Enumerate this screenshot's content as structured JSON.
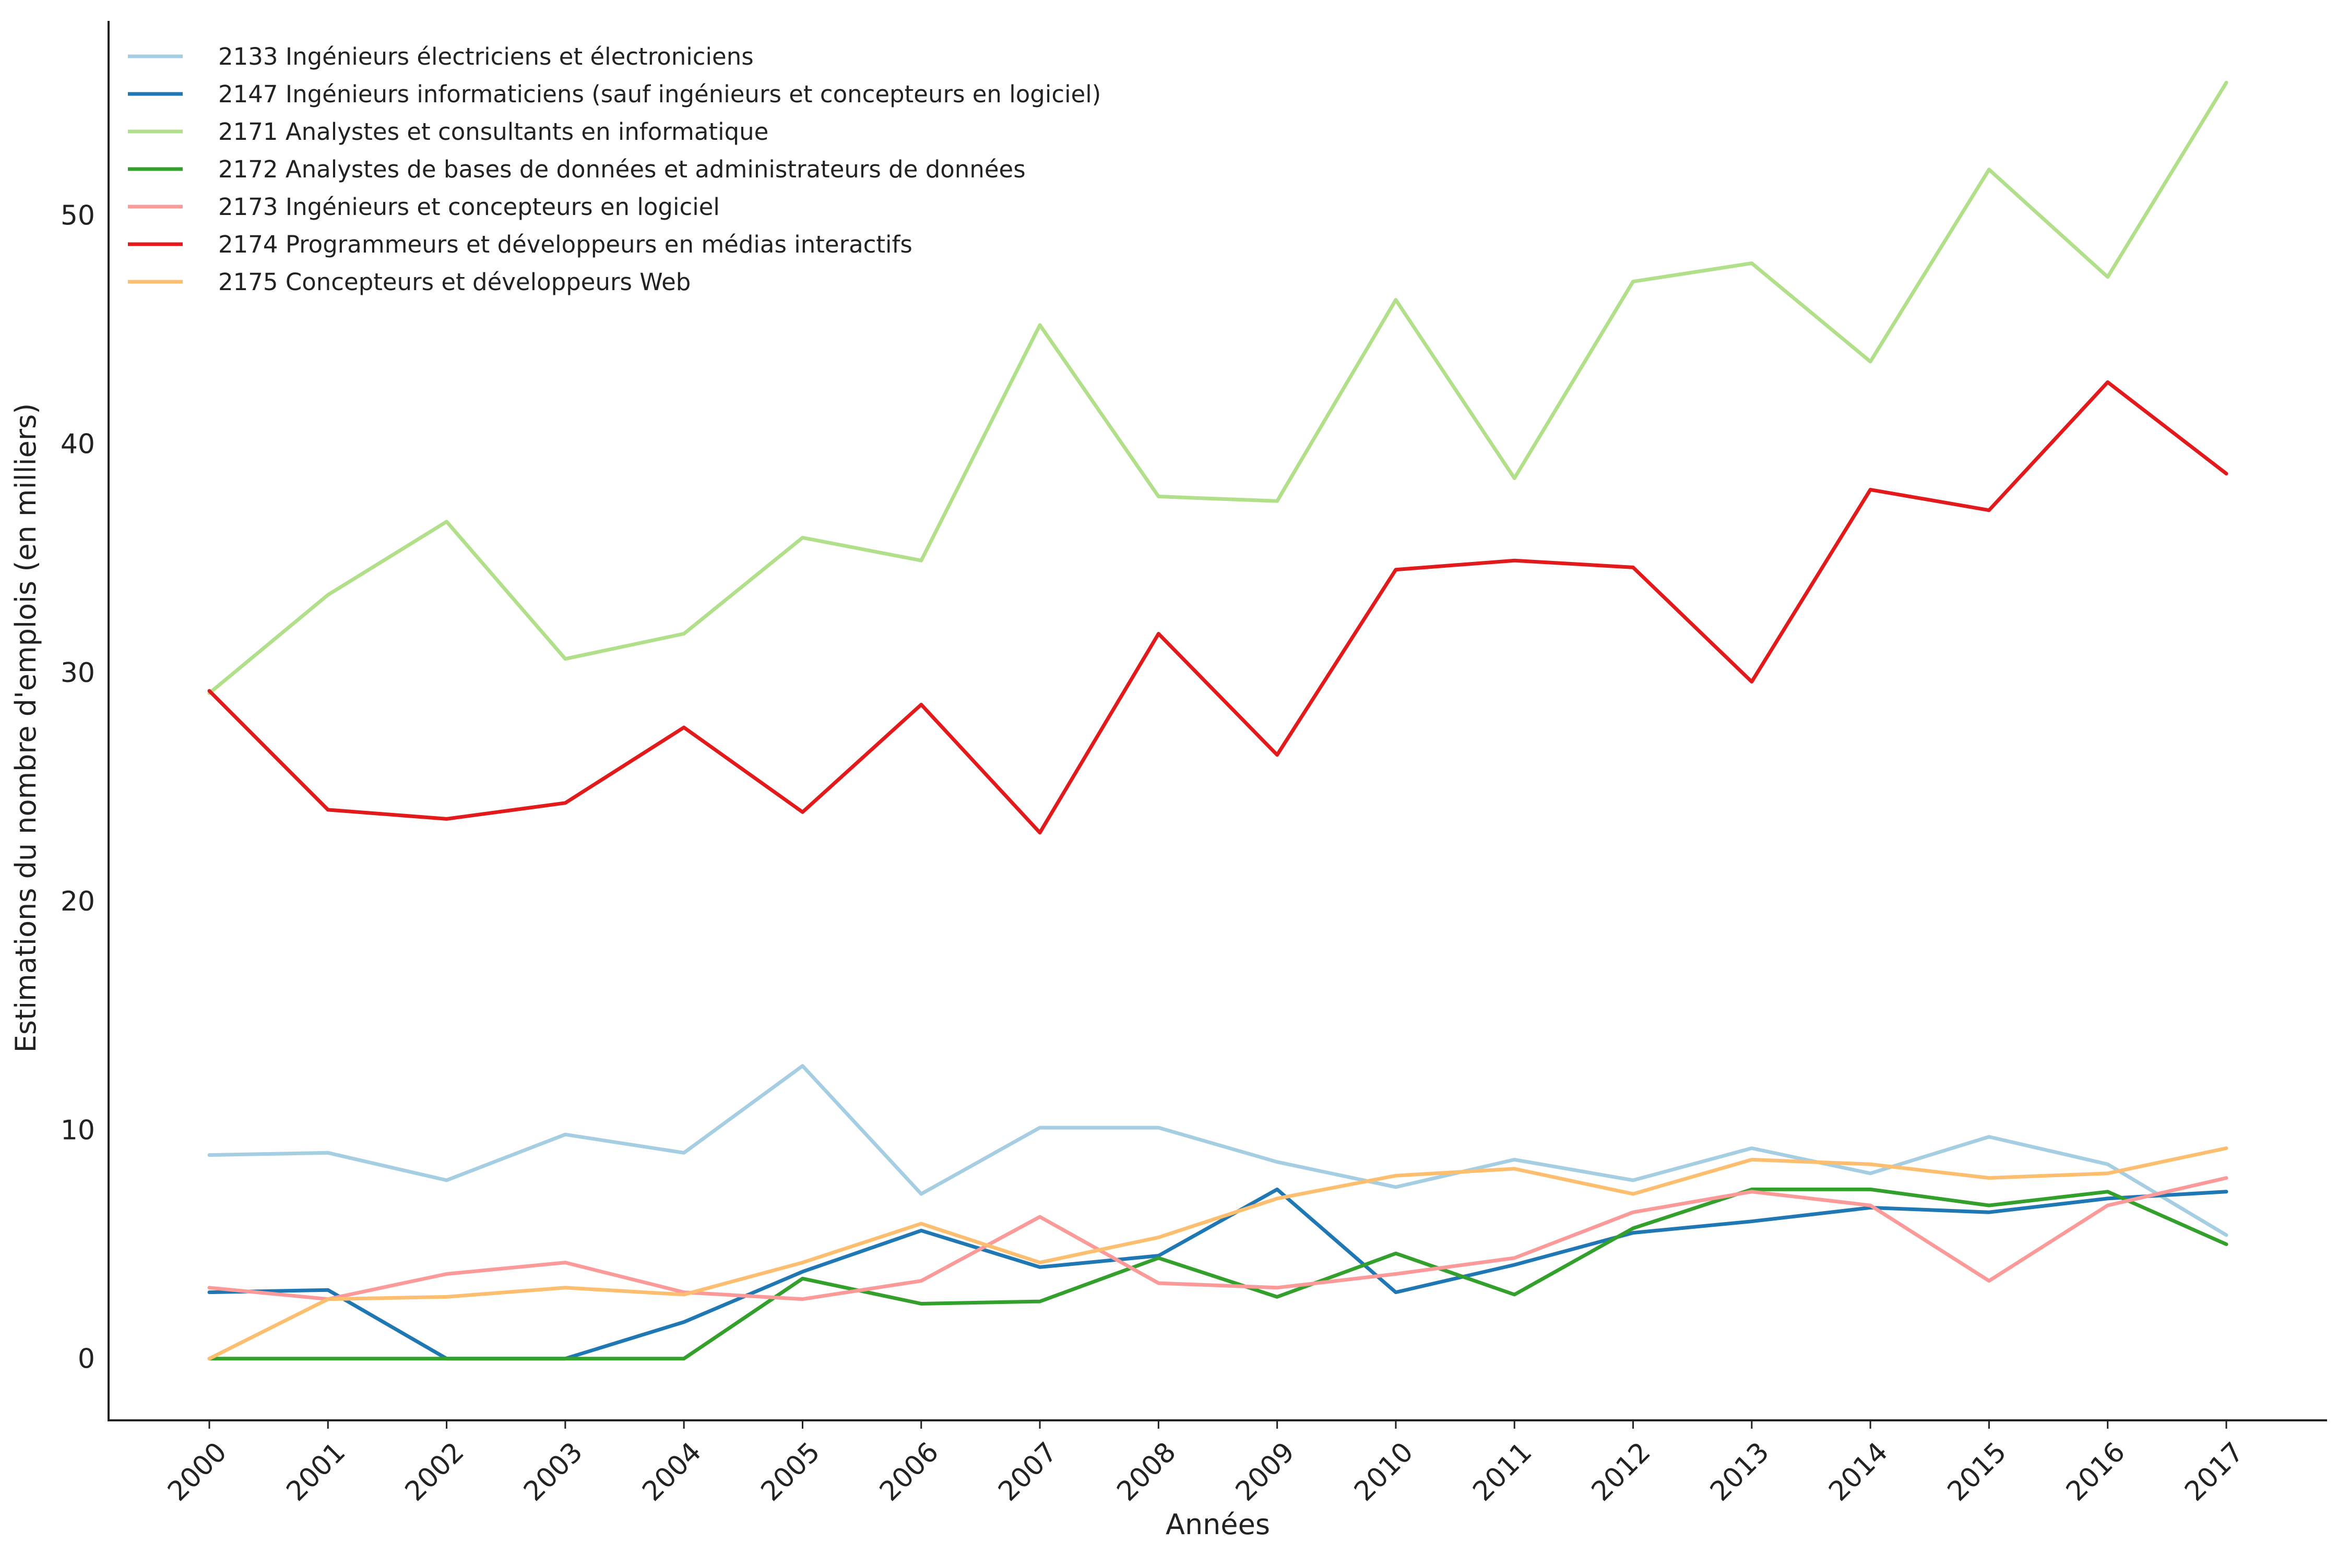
{
  "chart_data": {
    "type": "line",
    "title": "",
    "xlabel": "Années",
    "ylabel": "Estimations du nombre d'emplois (en milliers)",
    "x": [
      "2000",
      "2001",
      "2002",
      "2003",
      "2004",
      "2005",
      "2006",
      "2007",
      "2008",
      "2009",
      "2010",
      "2011",
      "2012",
      "2013",
      "2014",
      "2015",
      "2016",
      "2017"
    ],
    "ylim": [
      -2.7,
      58.5
    ],
    "yticks": [
      0,
      10,
      20,
      30,
      40,
      50
    ],
    "grid": false,
    "legend_position": "top-left",
    "series": [
      {
        "name": "2133 Ingénieurs électriciens et électroniciens",
        "color": "#a6cee3",
        "values": [
          8.9,
          9.0,
          7.8,
          9.8,
          9.0,
          12.8,
          7.2,
          10.1,
          10.1,
          8.6,
          7.5,
          8.7,
          7.8,
          9.2,
          8.1,
          9.7,
          8.5,
          5.4
        ]
      },
      {
        "name": "2147 Ingénieurs informaticiens (sauf ingénieurs et concepteurs en logiciel)",
        "color": "#1f78b4",
        "values": [
          2.9,
          3.0,
          0.0,
          0.0,
          1.6,
          3.8,
          5.6,
          4.0,
          4.5,
          7.4,
          2.9,
          4.1,
          5.5,
          6.0,
          6.6,
          6.4,
          7.0,
          7.3
        ]
      },
      {
        "name": "2171 Analystes et consultants en informatique",
        "color": "#b2df8a",
        "values": [
          29.1,
          33.4,
          36.6,
          30.6,
          31.7,
          35.9,
          34.9,
          45.2,
          37.7,
          37.5,
          46.3,
          38.5,
          47.1,
          47.9,
          43.6,
          52.0,
          47.3,
          55.8
        ]
      },
      {
        "name": "2172 Analystes de bases de données et administrateurs de données",
        "color": "#33a02c",
        "values": [
          0.0,
          0.0,
          0.0,
          0.0,
          0.0,
          3.5,
          2.4,
          2.5,
          4.4,
          2.7,
          4.6,
          2.8,
          5.7,
          7.4,
          7.4,
          6.7,
          7.3,
          5.0
        ]
      },
      {
        "name": "2173 Ingénieurs et concepteurs en logiciel",
        "color": "#fb9a99",
        "values": [
          3.1,
          2.6,
          3.7,
          4.2,
          2.9,
          2.6,
          3.4,
          6.2,
          3.3,
          3.1,
          3.7,
          4.4,
          6.4,
          7.3,
          6.7,
          3.4,
          6.7,
          7.9
        ]
      },
      {
        "name": "2174 Programmeurs et développeurs en médias interactifs",
        "color": "#e31a1c",
        "values": [
          29.2,
          24.0,
          23.6,
          24.3,
          27.6,
          23.9,
          28.6,
          23.0,
          31.7,
          26.4,
          34.5,
          34.9,
          34.6,
          29.6,
          38.0,
          37.1,
          42.7,
          38.7
        ]
      },
      {
        "name": "2175 Concepteurs et développeurs Web",
        "color": "#fdbf6f",
        "values": [
          0.0,
          2.6,
          2.7,
          3.1,
          2.8,
          4.2,
          5.9,
          4.2,
          5.3,
          7.0,
          8.0,
          8.3,
          7.2,
          8.7,
          8.5,
          7.9,
          8.1,
          9.2
        ]
      }
    ]
  }
}
